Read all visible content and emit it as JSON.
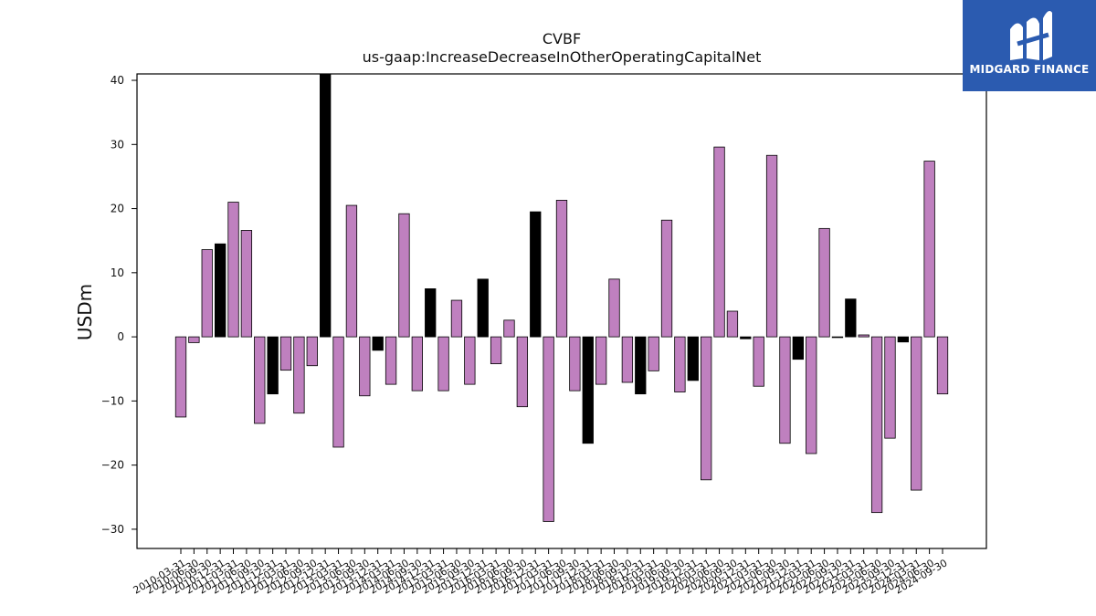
{
  "title": "CVBF",
  "subtitle": "us-gaap:IncreaseDecreaseInOtherOperatingCapitalNet",
  "logo": {
    "text": "MIDGARD FINANCE",
    "bg_color": "#2b5bb0"
  },
  "colors": {
    "positive_style": "#bf80bf",
    "negative_style": "#000000"
  },
  "chart_data": {
    "type": "bar",
    "ylabel": "USDm",
    "xlabel": "",
    "ylim": [
      -33,
      41
    ],
    "yticks": [
      -30,
      -20,
      -10,
      0,
      10,
      20,
      30,
      40
    ],
    "categories": [
      "2010-03-31",
      "2010-06-30",
      "2010-09-30",
      "2010-12-31",
      "2011-03-31",
      "2011-06-30",
      "2011-09-30",
      "2011-12-31",
      "2012-03-31",
      "2012-06-30",
      "2012-09-30",
      "2012-12-31",
      "2013-03-31",
      "2013-06-30",
      "2013-09-30",
      "2013-12-31",
      "2014-03-31",
      "2014-06-30",
      "2014-09-30",
      "2014-12-31",
      "2015-03-31",
      "2015-06-30",
      "2015-09-30",
      "2015-12-31",
      "2016-03-31",
      "2016-06-30",
      "2016-09-30",
      "2016-12-31",
      "2017-03-31",
      "2017-06-30",
      "2017-09-30",
      "2017-12-31",
      "2018-03-31",
      "2018-06-30",
      "2018-09-30",
      "2018-12-31",
      "2019-03-31",
      "2019-06-30",
      "2019-09-30",
      "2019-12-31",
      "2020-03-31",
      "2020-06-30",
      "2020-09-30",
      "2020-12-31",
      "2021-03-31",
      "2021-06-30",
      "2021-09-30",
      "2021-12-31",
      "2022-03-31",
      "2022-06-30",
      "2022-09-30",
      "2022-12-31",
      "2023-03-31",
      "2023-06-30",
      "2023-09-30",
      "2023-12-31",
      "2024-03-31",
      "2024-06-30",
      "2024-09-30"
    ],
    "values": [
      -12.5,
      -0.9,
      13.6,
      14.5,
      21.0,
      16.6,
      -13.5,
      -8.9,
      -5.2,
      -11.9,
      -4.5,
      41.5,
      -17.2,
      20.5,
      -9.2,
      -2.1,
      -7.4,
      19.2,
      -8.4,
      7.5,
      -8.4,
      5.7,
      -7.4,
      9.0,
      -4.2,
      2.6,
      -10.9,
      19.5,
      -28.8,
      21.3,
      -8.4,
      -16.6,
      -7.4,
      9.0,
      -7.1,
      -8.9,
      -5.3,
      18.2,
      -8.6,
      -6.8,
      -22.3,
      29.6,
      4.0,
      -0.3,
      -7.7,
      28.3,
      -16.6,
      -3.5,
      -18.2,
      16.9,
      -0.1,
      5.9,
      0.3,
      -27.4,
      -15.8,
      -0.8,
      -23.9,
      27.4,
      -8.9
    ],
    "bar_colors": [
      "#bf80bf",
      "#bf80bf",
      "#bf80bf",
      "#000000",
      "#bf80bf",
      "#bf80bf",
      "#bf80bf",
      "#000000",
      "#bf80bf",
      "#bf80bf",
      "#bf80bf",
      "#000000",
      "#bf80bf",
      "#bf80bf",
      "#bf80bf",
      "#000000",
      "#bf80bf",
      "#bf80bf",
      "#bf80bf",
      "#000000",
      "#bf80bf",
      "#bf80bf",
      "#bf80bf",
      "#000000",
      "#bf80bf",
      "#bf80bf",
      "#bf80bf",
      "#000000",
      "#bf80bf",
      "#bf80bf",
      "#bf80bf",
      "#000000",
      "#bf80bf",
      "#bf80bf",
      "#bf80bf",
      "#000000",
      "#bf80bf",
      "#bf80bf",
      "#bf80bf",
      "#000000",
      "#bf80bf",
      "#bf80bf",
      "#bf80bf",
      "#000000",
      "#bf80bf",
      "#bf80bf",
      "#bf80bf",
      "#000000",
      "#bf80bf",
      "#bf80bf",
      "#bf80bf",
      "#000000",
      "#bf80bf",
      "#bf80bf",
      "#bf80bf",
      "#000000",
      "#bf80bf",
      "#bf80bf",
      "#bf80bf"
    ],
    "grid": false,
    "legend": "none"
  }
}
